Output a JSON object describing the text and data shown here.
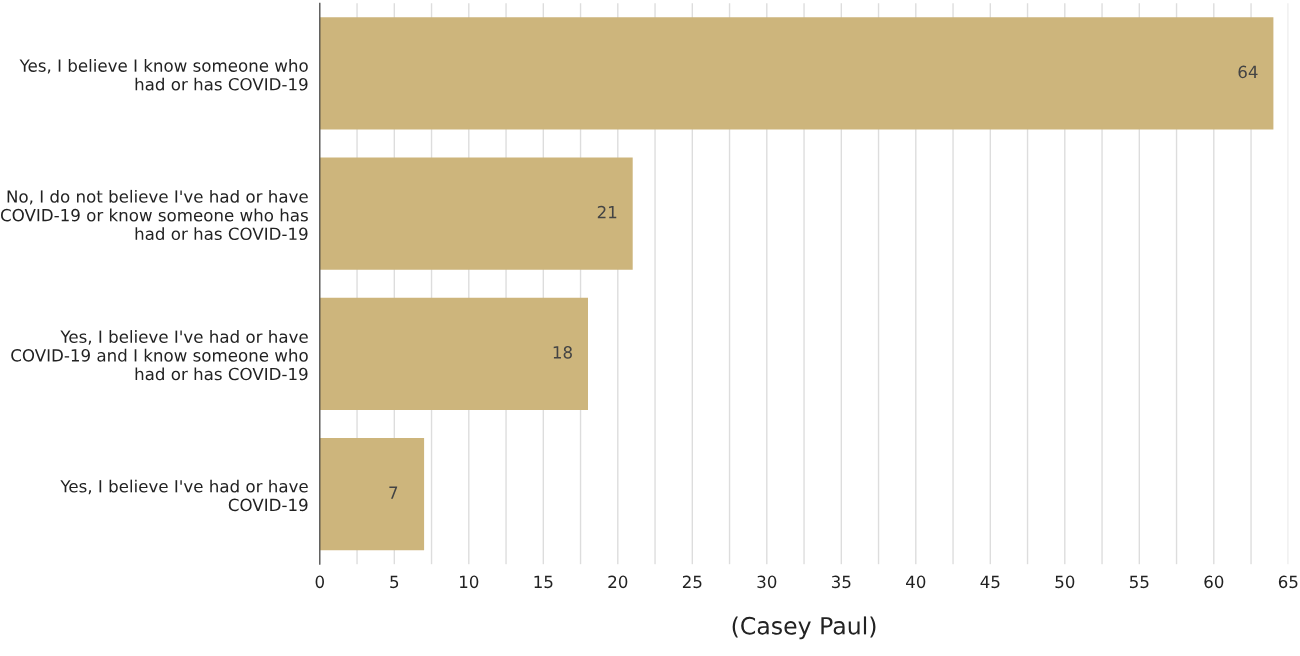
{
  "chart_data": {
    "type": "bar",
    "orientation": "horizontal",
    "categories": [
      "Yes, I believe I know someone who\nhad or has COVID-19",
      "No, I do not believe I've had or have\nCOVID-19 or know someone who has\nhad or has COVID-19",
      "Yes, I believe I've had or have\nCOVID-19 and I know someone who\nhad or has COVID-19",
      "Yes, I believe I've had or have\nCOVID-19"
    ],
    "values": [
      64,
      21,
      18,
      7
    ],
    "color": "#cdb57c",
    "data_labels": true,
    "xlim": [
      0,
      65
    ],
    "xticks": [
      0,
      {
        "value": 2.5,
        "label": null
      },
      5,
      {
        "value": 7.5,
        "label": null
      },
      10,
      {
        "value": 12.5,
        "label": null
      },
      15,
      {
        "value": 17.5,
        "label": null
      },
      20,
      {
        "value": 22.5,
        "label": null
      },
      25,
      {
        "value": 27.5,
        "label": null
      },
      30,
      {
        "value": 32.5,
        "label": null
      },
      35,
      {
        "value": 37.5,
        "label": null
      },
      40,
      {
        "value": 42.5,
        "label": null
      },
      45,
      {
        "value": 47.5,
        "label": null
      },
      50,
      {
        "value": 52.5,
        "label": null
      },
      55,
      {
        "value": 57.5,
        "label": null
      },
      60,
      {
        "value": 62.5,
        "label": null
      },
      65
    ],
    "grid": "x",
    "xlabel": "(Casey Paul)"
  }
}
